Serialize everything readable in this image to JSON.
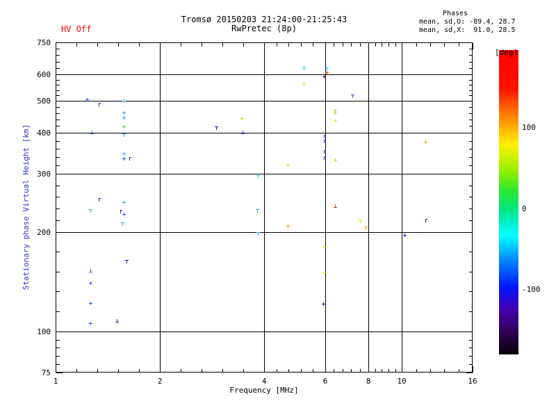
{
  "header": {
    "hv_status": "HV Off",
    "title": "Tromsø 20150203 21:24:00-21:25:43",
    "subtitle": "RwPretec (8p)",
    "phases_label": "Phases",
    "phases_o": "mean, sd,O: -89.4, 28.7",
    "phases_x": "mean, sd,X:  91.0, 28.5"
  },
  "colors": {
    "hv_status_red": "#ff0000",
    "ylabel_blue": "#2936c8",
    "axis_black": "#000000"
  },
  "chart_data": {
    "type": "scatter",
    "title": "Tromsø 20150203 21:24:00-21:25:43",
    "subtitle": "RwPretec (8p)",
    "xlabel": "Frequency [MHz]",
    "ylabel": "Stationary phase Virtual Height [km]",
    "x_scale": "log",
    "y_scale": "log",
    "xlim": [
      1,
      16
    ],
    "ylim": [
      75,
      750
    ],
    "x_ticks": [
      1,
      2,
      4,
      6,
      8,
      10,
      16
    ],
    "y_ticks": [
      750,
      600,
      500,
      400,
      300,
      200,
      100,
      75
    ],
    "grid_x": [
      2,
      4,
      6,
      8,
      10
    ],
    "grid_y": [
      600,
      500,
      400,
      300,
      200,
      100
    ],
    "minor_ticks_per_interval": 4,
    "points_format": [
      "freq_MHz",
      "virtual_height_km",
      "phase_color_hex",
      "marker_shape"
    ],
    "points": [
      [
        1.23,
        505,
        "#2c55f0",
        "p"
      ],
      [
        1.33,
        487,
        "#4a00a8",
        "f"
      ],
      [
        1.57,
        499,
        "#2aa4f4",
        "p"
      ],
      [
        1.57,
        460,
        "#2aa4f4",
        "p"
      ],
      [
        1.57,
        444,
        "#2aa4f4",
        "p"
      ],
      [
        1.57,
        417,
        "#32cd32",
        "p"
      ],
      [
        1.27,
        401,
        "#2c55f0",
        "u"
      ],
      [
        1.57,
        393,
        "#2aa4f4",
        "t"
      ],
      [
        1.57,
        345,
        "#2aa4f4",
        "p"
      ],
      [
        1.57,
        334,
        "#2c55f0",
        "p"
      ],
      [
        1.63,
        333,
        "#4a00a8",
        "f"
      ],
      [
        1.33,
        251,
        "#4a00a8",
        "f"
      ],
      [
        1.26,
        232,
        "#2aa4f4",
        "t"
      ],
      [
        1.57,
        246,
        "#2aa4f4",
        "p"
      ],
      [
        1.54,
        231,
        "#4a00a8",
        "f"
      ],
      [
        1.57,
        227,
        "#2c55f0",
        "p"
      ],
      [
        1.56,
        212,
        "#2aa4f4",
        "t"
      ],
      [
        1.6,
        163,
        "#4a00a8",
        "t"
      ],
      [
        1.26,
        153,
        "#2c55f0",
        "u"
      ],
      [
        1.26,
        140,
        "#2c55f0",
        "p"
      ],
      [
        1.26,
        122,
        "#2c55f0",
        "p"
      ],
      [
        1.26,
        106,
        "#2c55f0",
        "p"
      ],
      [
        1.5,
        108,
        "#4a00a8",
        "u"
      ],
      [
        2.91,
        413,
        "#4a00a8",
        "t"
      ],
      [
        3.45,
        442,
        "#f0e000",
        "p"
      ],
      [
        3.47,
        401,
        "#2c55f0",
        "u"
      ],
      [
        3.84,
        294,
        "#12d2f2",
        "t"
      ],
      [
        3.82,
        232,
        "#2aa4f4",
        "t"
      ],
      [
        3.84,
        198,
        "#2aa4f4",
        "t"
      ],
      [
        4.68,
        320,
        "#f0e000",
        "p"
      ],
      [
        4.68,
        209,
        "#ffa000",
        "p"
      ],
      [
        5.2,
        627,
        "#12d2f2",
        "t"
      ],
      [
        6.06,
        627,
        "#12d2f2",
        "p"
      ],
      [
        6.06,
        608,
        "#ff4400",
        "p"
      ],
      [
        5.95,
        590,
        "#5a00b4",
        "p"
      ],
      [
        5.2,
        557,
        "#f0e000",
        "t"
      ],
      [
        7.19,
        516,
        "#2c55f0",
        "t"
      ],
      [
        6.41,
        466,
        "#aade14",
        "p"
      ],
      [
        6.41,
        460,
        "#aade14",
        "p"
      ],
      [
        6.41,
        436,
        "#f0e000",
        "p"
      ],
      [
        5.95,
        389,
        "#3b16d8",
        "f"
      ],
      [
        5.95,
        376,
        "#3b16d8",
        "f"
      ],
      [
        5.95,
        350,
        "#3b16d8",
        "f"
      ],
      [
        5.95,
        335,
        "#3b16d8",
        "f"
      ],
      [
        6.41,
        331,
        "#aade14",
        "p"
      ],
      [
        6.41,
        240,
        "#e83028",
        "u"
      ],
      [
        7.57,
        216,
        "#f0e000",
        "t"
      ],
      [
        7.85,
        206,
        "#ffa000",
        "t"
      ],
      [
        11.69,
        376,
        "#ffa000",
        "u"
      ],
      [
        11.69,
        217,
        "#4a00a8",
        "f"
      ],
      [
        10.17,
        196,
        "#3b16d8",
        "p"
      ],
      [
        5.95,
        180,
        "#f0e000",
        "p"
      ],
      [
        5.95,
        151,
        "#f0e000",
        "p"
      ],
      [
        5.93,
        121,
        "#3b16d8",
        "p"
      ]
    ],
    "colorbar": {
      "label": "[deg]",
      "ticks": [
        100,
        0,
        -100
      ],
      "range_deg": [
        -180,
        180
      ],
      "legend_position": "right",
      "gradient_stops": [
        [
          0,
          "#ff0000"
        ],
        [
          13,
          "#ff1400"
        ],
        [
          20,
          "#ff6e00"
        ],
        [
          25,
          "#ffaa00"
        ],
        [
          31,
          "#fff000"
        ],
        [
          40,
          "#90f000"
        ],
        [
          46,
          "#30e830"
        ],
        [
          52,
          "#00e87a"
        ],
        [
          57,
          "#00f0d0"
        ],
        [
          61,
          "#00ffff"
        ],
        [
          68,
          "#0096ff"
        ],
        [
          78,
          "#0014ff"
        ],
        [
          85,
          "#4600b4"
        ],
        [
          92,
          "#32005a"
        ],
        [
          100,
          "#0a0008"
        ]
      ]
    }
  }
}
